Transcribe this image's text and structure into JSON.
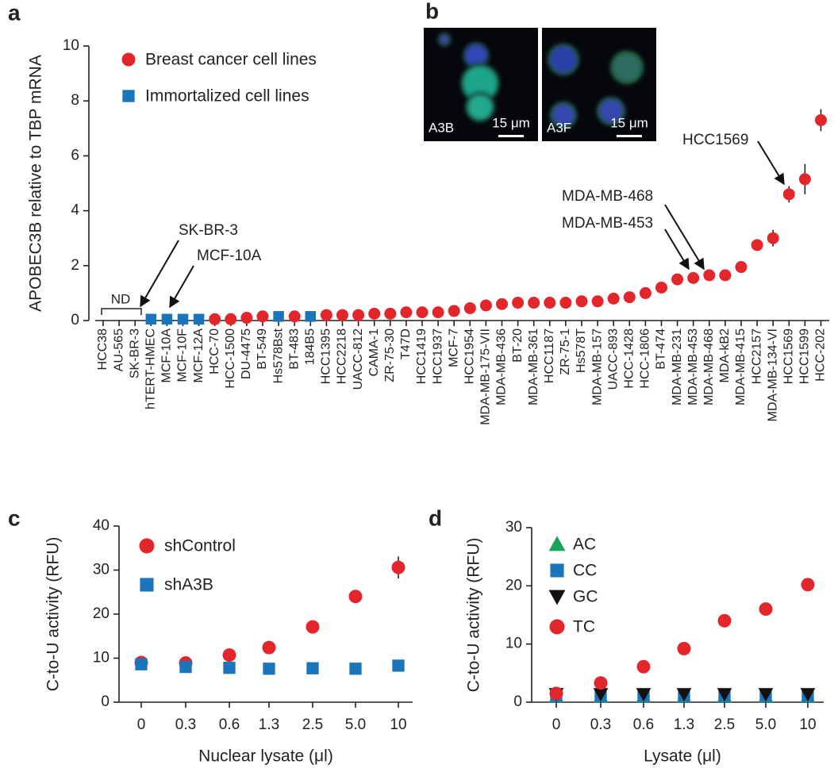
{
  "chart_data": [
    {
      "panel": "a",
      "type": "dot",
      "y_label": "APOBEC3B relative to TBP mRNA",
      "categories": [
        "HCC38",
        "AU-565",
        "SK-BR-3",
        "hTERT-HMEC",
        "MCF-10A",
        "MCF-10F",
        "MCF-12A",
        "HCC-70",
        "HCC-1500",
        "DU-4475",
        "BT-549",
        "Hs578Bst",
        "BT-483",
        "184B5",
        "HCC1395",
        "HCC2218",
        "UACC-812",
        "CAMA-1",
        "ZR-75-30",
        "T47D",
        "HCC1419",
        "HCC1937",
        "MCF-7",
        "HCC1954",
        "MDA-MB-175-VII",
        "MDA-MB-436",
        "BT-20",
        "MDA-MB-361",
        "HCC1187",
        "ZR-75-1",
        "Hs578T",
        "MDA-MB-157",
        "UACC-893",
        "HCC-1428",
        "HCC-1806",
        "BT-474",
        "MDA-MB-231",
        "MDA-MB-453",
        "MDA-MB-468",
        "MDA-kB2",
        "MDA-MB-415",
        "HCC2157",
        "MDA-MB-134-VI",
        "HCC1569",
        "HCC1599",
        "HCC-202"
      ],
      "ylim": [
        0,
        10
      ],
      "yticks": [
        0,
        2,
        4,
        6,
        8,
        10
      ],
      "series": [
        {
          "name": "Breast cancer cell lines",
          "color": "#e3262b",
          "marker": "circle",
          "values": [
            null,
            null,
            null,
            null,
            null,
            null,
            null,
            0.05,
            0.05,
            0.1,
            0.15,
            null,
            0.15,
            null,
            0.2,
            0.2,
            0.2,
            0.25,
            0.25,
            0.3,
            0.3,
            0.3,
            0.35,
            0.45,
            0.55,
            0.6,
            0.65,
            0.65,
            0.65,
            0.65,
            0.7,
            0.7,
            0.8,
            0.85,
            1.0,
            1.2,
            1.5,
            1.55,
            1.65,
            1.65,
            1.95,
            2.75,
            3.0,
            4.6,
            5.15,
            7.3
          ],
          "errors": [
            null,
            null,
            null,
            null,
            null,
            null,
            null,
            null,
            null,
            null,
            null,
            null,
            null,
            null,
            null,
            null,
            null,
            null,
            null,
            null,
            null,
            null,
            null,
            null,
            null,
            null,
            null,
            null,
            null,
            null,
            null,
            null,
            null,
            null,
            null,
            null,
            null,
            null,
            null,
            null,
            0.15,
            null,
            0.3,
            0.3,
            0.55,
            0.4
          ]
        },
        {
          "name": "Immortalized cell lines",
          "color": "#1b75bb",
          "marker": "square",
          "values": [
            null,
            null,
            null,
            0.05,
            0.05,
            0.05,
            0.05,
            null,
            null,
            null,
            null,
            0.15,
            null,
            0.15,
            null,
            null,
            null,
            null,
            null,
            null,
            null,
            null,
            null,
            null,
            null,
            null,
            null,
            null,
            null,
            null,
            null,
            null,
            null,
            null,
            null,
            null,
            null,
            null,
            null,
            null,
            null,
            null,
            null,
            null,
            null,
            null
          ]
        }
      ],
      "annotations": [
        "ND",
        "SK-BR-3",
        "MCF-10A",
        "MDA-MB-468",
        "MDA-MB-453",
        "HCC1569"
      ]
    },
    {
      "panel": "b",
      "type": "micrograph",
      "images": [
        {
          "label": "A3B",
          "scale_bar": "15 μm"
        },
        {
          "label": "A3F",
          "scale_bar": "15 μm"
        }
      ]
    },
    {
      "panel": "c",
      "type": "dot",
      "x_label": "Nuclear lysate (μl)",
      "y_label": "C-to-U activity (RFU)",
      "categories": [
        "0",
        "0.3",
        "0.6",
        "1.3",
        "2.5",
        "5.0",
        "10"
      ],
      "ylim": [
        0,
        40
      ],
      "yticks": [
        0,
        10,
        20,
        30,
        40
      ],
      "series": [
        {
          "name": "shControl",
          "color": "#e3262b",
          "marker": "circle",
          "values": [
            9,
            8.9,
            10.7,
            12.4,
            17.1,
            24,
            30.6
          ],
          "errors": [
            null,
            null,
            null,
            null,
            0.8,
            null,
            2.5
          ]
        },
        {
          "name": "shA3B",
          "color": "#1b75bb",
          "marker": "square",
          "values": [
            8.6,
            8,
            7.8,
            7.6,
            7.7,
            7.6,
            8.3
          ]
        }
      ]
    },
    {
      "panel": "d",
      "type": "dot",
      "x_label": "Lysate (μl)",
      "y_label": "C-to-U activity (RFU)",
      "categories": [
        "0",
        "0.3",
        "0.6",
        "1.3",
        "2.5",
        "5.0",
        "10"
      ],
      "ylim": [
        0,
        30
      ],
      "yticks": [
        0,
        10,
        20,
        30
      ],
      "series": [
        {
          "name": "AC",
          "color": "#1aa45a",
          "marker": "triangle-up",
          "values": [
            1,
            1,
            1,
            1,
            1,
            1,
            1
          ]
        },
        {
          "name": "CC",
          "color": "#1b75bb",
          "marker": "square",
          "values": [
            1.1,
            1.1,
            1.1,
            1.1,
            1.1,
            1.1,
            1.1
          ]
        },
        {
          "name": "GC",
          "color": "#111111",
          "marker": "triangle-down",
          "values": [
            1.4,
            1.4,
            1.4,
            1.4,
            1.4,
            1.4,
            1.4
          ]
        },
        {
          "name": "TC",
          "color": "#e3262b",
          "marker": "circle",
          "values": [
            1.5,
            3.3,
            6.1,
            9.2,
            14,
            16,
            20.2
          ]
        }
      ]
    }
  ]
}
